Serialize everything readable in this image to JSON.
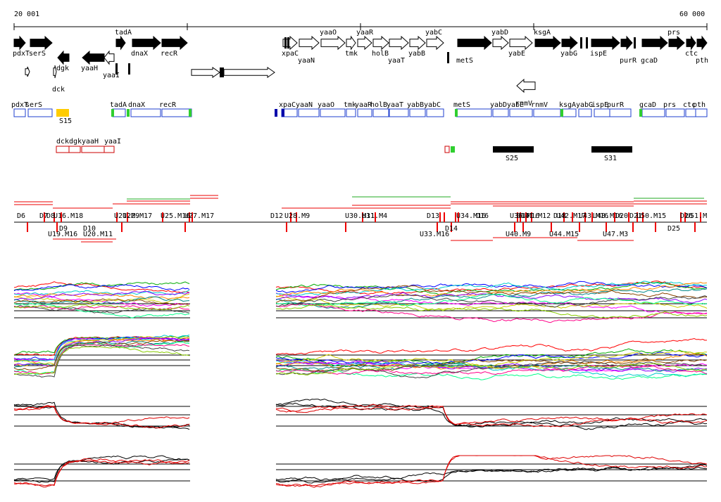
{
  "axis": {
    "start_label": "20 001",
    "end_label": "60 000"
  },
  "colors": {
    "gene_filled": "#000000",
    "gene_outline": "#000000",
    "operon_box": "#1f3fcf",
    "operon_end": "#0000aa",
    "operon_green": "#2fcf2f",
    "operon_red": "#cc0000",
    "sigma_yellow": "#ffcc00",
    "segment_red": "#ee0000",
    "segment_green": "#22aa22",
    "curve_black": "#000000",
    "curve_red": "#dd0000"
  },
  "genes_top": [
    {
      "name": "pdxT",
      "lbl_pos": "below"
    },
    {
      "name": "serS",
      "lbl_pos": "below"
    },
    {
      "name": "dgk",
      "lbl_pos": "below"
    },
    {
      "name": "dck",
      "lbl_pos": "below2"
    },
    {
      "name": "yaaH",
      "lbl_pos": "below"
    },
    {
      "name": "yaaI",
      "lbl_pos": "below2"
    },
    {
      "name": "tadA",
      "lbl_pos": "above"
    },
    {
      "name": "dnaX",
      "lbl_pos": "below"
    },
    {
      "name": "recR",
      "lbl_pos": "below"
    },
    {
      "name": "xpaC",
      "lbl_pos": "below"
    },
    {
      "name": "yaaN",
      "lbl_pos": "below2"
    },
    {
      "name": "yaaO",
      "lbl_pos": "above"
    },
    {
      "name": "tmk",
      "lbl_pos": "below"
    },
    {
      "name": "yaaR",
      "lbl_pos": "above"
    },
    {
      "name": "holB",
      "lbl_pos": "below"
    },
    {
      "name": "yaaT",
      "lbl_pos": "below2"
    },
    {
      "name": "yabB",
      "lbl_pos": "below"
    },
    {
      "name": "yabC",
      "lbl_pos": "above"
    },
    {
      "name": "metS",
      "lbl_pos": "below2"
    },
    {
      "name": "yabD",
      "lbl_pos": "above"
    },
    {
      "name": "yabE",
      "lbl_pos": "below"
    },
    {
      "name": "rnmV",
      "lbl_pos": "below2"
    },
    {
      "name": "ksgA",
      "lbl_pos": "above"
    },
    {
      "name": "yabG",
      "lbl_pos": "below"
    },
    {
      "name": "ispE",
      "lbl_pos": "below"
    },
    {
      "name": "purR",
      "lbl_pos": "below2"
    },
    {
      "name": "gcaD",
      "lbl_pos": "below2"
    },
    {
      "name": "prs",
      "lbl_pos": "above"
    },
    {
      "name": "ctc",
      "lbl_pos": "below"
    },
    {
      "name": "pth",
      "lbl_pos": "below2"
    }
  ],
  "operons": [
    {
      "label": "pdxT"
    },
    {
      "label": "serS"
    },
    {
      "label": "tadA"
    },
    {
      "label": "dnaX"
    },
    {
      "label": "recR"
    },
    {
      "label": "xpaC"
    },
    {
      "label": "yaaN"
    },
    {
      "label": "yaaO"
    },
    {
      "label": "tmk"
    },
    {
      "label": "yaaR"
    },
    {
      "label": "holB"
    },
    {
      "label": "yaaT"
    },
    {
      "label": "yabB"
    },
    {
      "label": "yabC"
    },
    {
      "label": "metS"
    },
    {
      "label": "yabD"
    },
    {
      "label": "yabE"
    },
    {
      "label": "rnmV"
    },
    {
      "label": "ksgA"
    },
    {
      "label": "yabG"
    },
    {
      "label": "ispE"
    },
    {
      "label": "purR"
    },
    {
      "label": "gcaD"
    },
    {
      "label": "prs"
    },
    {
      "label": "ctc"
    },
    {
      "label": "pth"
    }
  ],
  "sigma_labels": [
    "S15",
    "S25",
    "S31"
  ],
  "small_operons": [
    "dck",
    "dgk",
    "yaaH",
    "yaaI"
  ],
  "segment_labels_top": [
    "D6",
    "D7",
    "D8",
    "U16.M18",
    "U21.M9",
    "U22.M17",
    "U25.M16",
    "U27.M17",
    "D12",
    "U28.M9",
    "U30.M11",
    "U31.M4",
    "D13",
    "U34.M16",
    "D16",
    "U36.M16",
    "U41.M12",
    "U42.M17",
    "U43.M16",
    "U48.M16",
    "U50.M15",
    "U51.M"
  ],
  "segment_labels_bottom": [
    "D9",
    "U19.M16",
    "D10",
    "U20.M11",
    "D14",
    "U33.M16",
    "D17",
    "U40.M9",
    "D18",
    "U44.M15",
    "D20",
    "D21",
    "U47.M3",
    "D25",
    "D26"
  ],
  "tracks": [
    {
      "name": "expression-panel-1"
    },
    {
      "name": "expression-panel-2"
    },
    {
      "name": "expression-panel-3"
    },
    {
      "name": "expression-panel-4"
    }
  ]
}
